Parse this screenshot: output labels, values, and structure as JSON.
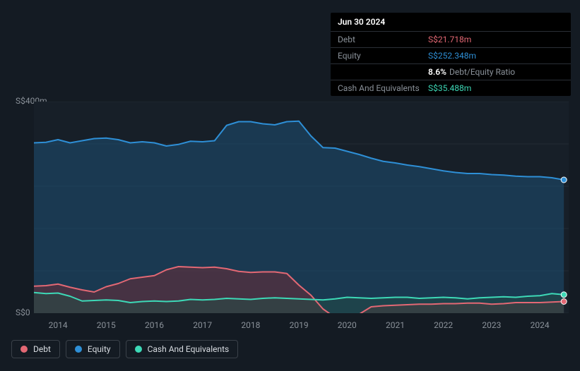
{
  "background_color": "#141b23",
  "tooltip": {
    "date": "Jun 30 2024",
    "rows": [
      {
        "label": "Debt",
        "value": "S$21.718m",
        "color": "#e36874"
      },
      {
        "label": "Equity",
        "value": "S$252.348m",
        "color": "#2e8fd6"
      },
      {
        "label": "",
        "ratio_pct": "8.6%",
        "ratio_text": "Debt/Equity Ratio"
      },
      {
        "label": "Cash And Equivalents",
        "value": "S$35.488m",
        "color": "#3dd9b7"
      }
    ]
  },
  "chart": {
    "type": "area",
    "x_domain": [
      2013.5,
      2024.6
    ],
    "y_domain": [
      0,
      400
    ],
    "y_ticks": [
      {
        "v": 400,
        "label": "S$400m"
      },
      {
        "v": 0,
        "label": "S$0"
      }
    ],
    "x_ticks": [
      2014,
      2015,
      2016,
      2017,
      2018,
      2019,
      2020,
      2021,
      2022,
      2023,
      2024
    ],
    "gridlines_y": [
      0,
      80,
      160,
      240,
      320,
      400
    ],
    "grid_color": "#232b34",
    "plot_background": "#171f28",
    "series": [
      {
        "name": "Equity",
        "color_line": "#2e8fd6",
        "color_fill": "#1e4f72",
        "fill_opacity": 0.55,
        "line_width": 2,
        "data": [
          [
            2013.5,
            322
          ],
          [
            2013.75,
            323
          ],
          [
            2014,
            328
          ],
          [
            2014.25,
            322
          ],
          [
            2014.5,
            326
          ],
          [
            2014.75,
            330
          ],
          [
            2015,
            331
          ],
          [
            2015.25,
            328
          ],
          [
            2015.5,
            322
          ],
          [
            2015.75,
            324
          ],
          [
            2016,
            322
          ],
          [
            2016.25,
            316
          ],
          [
            2016.5,
            319
          ],
          [
            2016.75,
            325
          ],
          [
            2017,
            324
          ],
          [
            2017.25,
            326
          ],
          [
            2017.5,
            355
          ],
          [
            2017.75,
            362
          ],
          [
            2018,
            362
          ],
          [
            2018.25,
            358
          ],
          [
            2018.5,
            356
          ],
          [
            2018.75,
            362
          ],
          [
            2019,
            363
          ],
          [
            2019.25,
            335
          ],
          [
            2019.5,
            313
          ],
          [
            2019.75,
            312
          ],
          [
            2020,
            306
          ],
          [
            2020.25,
            300
          ],
          [
            2020.5,
            293
          ],
          [
            2020.75,
            287
          ],
          [
            2021,
            284
          ],
          [
            2021.25,
            280
          ],
          [
            2021.5,
            277
          ],
          [
            2021.75,
            273
          ],
          [
            2022,
            269
          ],
          [
            2022.25,
            266
          ],
          [
            2022.5,
            264
          ],
          [
            2022.75,
            264
          ],
          [
            2023,
            262
          ],
          [
            2023.25,
            261
          ],
          [
            2023.5,
            259
          ],
          [
            2023.75,
            258
          ],
          [
            2024,
            258
          ],
          [
            2024.25,
            256
          ],
          [
            2024.5,
            252
          ]
        ]
      },
      {
        "name": "Debt",
        "color_line": "#e36874",
        "color_fill": "#6b2e38",
        "fill_opacity": 0.55,
        "line_width": 2,
        "data": [
          [
            2013.5,
            51
          ],
          [
            2013.75,
            52
          ],
          [
            2014,
            55
          ],
          [
            2014.25,
            49
          ],
          [
            2014.5,
            44
          ],
          [
            2014.75,
            40
          ],
          [
            2015,
            50
          ],
          [
            2015.25,
            56
          ],
          [
            2015.5,
            65
          ],
          [
            2015.75,
            68
          ],
          [
            2016,
            71
          ],
          [
            2016.25,
            82
          ],
          [
            2016.5,
            88
          ],
          [
            2016.75,
            87
          ],
          [
            2017,
            86
          ],
          [
            2017.25,
            87
          ],
          [
            2017.5,
            84
          ],
          [
            2017.75,
            79
          ],
          [
            2018,
            77
          ],
          [
            2018.25,
            78
          ],
          [
            2018.5,
            78
          ],
          [
            2018.75,
            75
          ],
          [
            2019,
            53
          ],
          [
            2019.25,
            34
          ],
          [
            2019.5,
            8
          ],
          [
            2019.75,
            -8
          ],
          [
            2020,
            -12
          ],
          [
            2020.25,
            -2
          ],
          [
            2020.5,
            12
          ],
          [
            2020.75,
            14
          ],
          [
            2021,
            15
          ],
          [
            2021.25,
            16
          ],
          [
            2021.5,
            17
          ],
          [
            2021.75,
            17
          ],
          [
            2022,
            18
          ],
          [
            2022.25,
            18
          ],
          [
            2022.5,
            19
          ],
          [
            2022.75,
            19
          ],
          [
            2023,
            17
          ],
          [
            2023.25,
            18
          ],
          [
            2023.5,
            20
          ],
          [
            2023.75,
            20
          ],
          [
            2024,
            20
          ],
          [
            2024.25,
            21
          ],
          [
            2024.5,
            22
          ]
        ]
      },
      {
        "name": "Cash And Equivalents",
        "color_line": "#3dd9b7",
        "color_fill": "#214d46",
        "fill_opacity": 0.5,
        "line_width": 2,
        "data": [
          [
            2013.5,
            39
          ],
          [
            2013.75,
            37
          ],
          [
            2014,
            38
          ],
          [
            2014.25,
            32
          ],
          [
            2014.5,
            23
          ],
          [
            2014.75,
            24
          ],
          [
            2015,
            25
          ],
          [
            2015.25,
            24
          ],
          [
            2015.5,
            20
          ],
          [
            2015.75,
            22
          ],
          [
            2016,
            23
          ],
          [
            2016.25,
            22
          ],
          [
            2016.5,
            23
          ],
          [
            2016.75,
            26
          ],
          [
            2017,
            25
          ],
          [
            2017.25,
            26
          ],
          [
            2017.5,
            28
          ],
          [
            2017.75,
            27
          ],
          [
            2018,
            26
          ],
          [
            2018.25,
            28
          ],
          [
            2018.5,
            29
          ],
          [
            2018.75,
            28
          ],
          [
            2019,
            27
          ],
          [
            2019.25,
            26
          ],
          [
            2019.5,
            25
          ],
          [
            2019.75,
            27
          ],
          [
            2020,
            30
          ],
          [
            2020.25,
            29
          ],
          [
            2020.5,
            28
          ],
          [
            2020.75,
            29
          ],
          [
            2021,
            30
          ],
          [
            2021.25,
            30
          ],
          [
            2021.5,
            28
          ],
          [
            2021.75,
            29
          ],
          [
            2022,
            30
          ],
          [
            2022.25,
            29
          ],
          [
            2022.5,
            27
          ],
          [
            2022.75,
            29
          ],
          [
            2023,
            30
          ],
          [
            2023.25,
            31
          ],
          [
            2023.5,
            30
          ],
          [
            2023.75,
            32
          ],
          [
            2024,
            33
          ],
          [
            2024.25,
            37
          ],
          [
            2024.5,
            35
          ]
        ]
      }
    ],
    "end_markers": [
      {
        "series": "Equity",
        "color": "#2e8fd6"
      },
      {
        "series": "Debt",
        "color": "#e36874"
      },
      {
        "series": "Cash And Equivalents",
        "color": "#3dd9b7"
      }
    ]
  },
  "legend": [
    {
      "label": "Debt",
      "color": "#e36874"
    },
    {
      "label": "Equity",
      "color": "#2e8fd6"
    },
    {
      "label": "Cash And Equivalents",
      "color": "#3dd9b7"
    }
  ]
}
